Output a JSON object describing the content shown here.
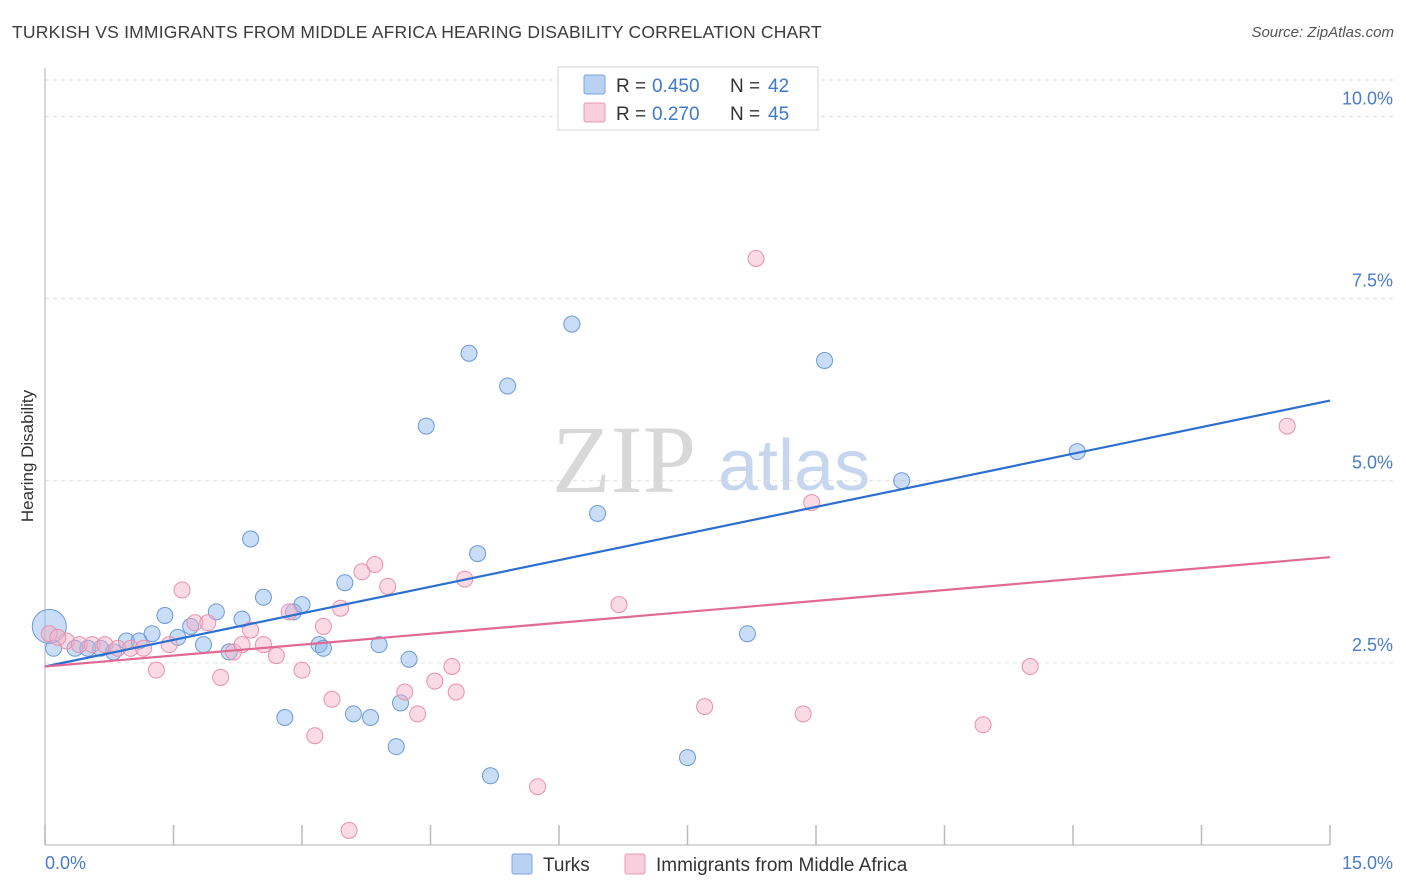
{
  "title": "TURKISH VS IMMIGRANTS FROM MIDDLE AFRICA HEARING DISABILITY CORRELATION CHART",
  "source": "Source: ZipAtlas.com",
  "watermark": {
    "zip": "ZIP",
    "atlas": "atlas"
  },
  "legend": {
    "r_label": "R = ",
    "n_label": "N = ",
    "rows": [
      {
        "r": "0.450",
        "n": "42"
      },
      {
        "r": "0.270",
        "n": "45"
      }
    ]
  },
  "chart_data": {
    "type": "scatter",
    "title": "TURKISH VS IMMIGRANTS FROM MIDDLE AFRICA HEARING DISABILITY CORRELATION CHART",
    "xlabel": "",
    "ylabel": "Hearing Disability",
    "xlim": [
      0,
      15
    ],
    "ylim": [
      0,
      10.5
    ],
    "x_tick_labels": [
      "0.0%",
      "15.0%"
    ],
    "y_ticks": [
      2.5,
      5.0,
      7.5,
      10.0
    ],
    "y_tick_labels": [
      "2.5%",
      "5.0%",
      "7.5%",
      "10.0%"
    ],
    "grid": "horizontal dashed",
    "legend_position": "top-center",
    "series": [
      {
        "name": "Turks",
        "color": "#8ab4ea",
        "stroke": "#6a9ad8",
        "line_color": "#2d6fcf",
        "r": 0.45,
        "n": 42,
        "trend": [
          [
            0,
            2.45
          ],
          [
            15,
            6.1
          ]
        ],
        "points": [
          [
            0.1,
            2.7
          ],
          [
            0.35,
            2.7
          ],
          [
            0.5,
            2.7
          ],
          [
            0.65,
            2.7
          ],
          [
            0.8,
            2.65
          ],
          [
            0.95,
            2.8
          ],
          [
            1.1,
            2.8
          ],
          [
            1.25,
            2.9
          ],
          [
            1.4,
            3.15
          ],
          [
            1.55,
            2.85
          ],
          [
            1.7,
            3.0
          ],
          [
            1.85,
            2.75
          ],
          [
            2.0,
            3.2
          ],
          [
            2.15,
            2.65
          ],
          [
            2.3,
            3.1
          ],
          [
            2.4,
            4.2
          ],
          [
            2.55,
            3.4
          ],
          [
            2.8,
            1.75
          ],
          [
            2.9,
            3.2
          ],
          [
            3.0,
            3.3
          ],
          [
            3.2,
            2.75
          ],
          [
            3.25,
            2.7
          ],
          [
            3.5,
            3.6
          ],
          [
            3.6,
            1.8
          ],
          [
            3.8,
            1.75
          ],
          [
            3.9,
            2.75
          ],
          [
            4.1,
            1.35
          ],
          [
            4.15,
            1.95
          ],
          [
            4.25,
            2.55
          ],
          [
            4.45,
            5.75
          ],
          [
            4.95,
            6.75
          ],
          [
            5.05,
            4.0
          ],
          [
            5.2,
            0.95
          ],
          [
            5.4,
            6.3
          ],
          [
            6.15,
            7.15
          ],
          [
            6.45,
            4.55
          ],
          [
            7.5,
            1.2
          ],
          [
            8.2,
            2.9
          ],
          [
            9.1,
            6.65
          ],
          [
            10.0,
            5.0
          ],
          [
            12.05,
            5.4
          ],
          [
            0.05,
            3.0
          ]
        ]
      },
      {
        "name": "Immigrants from Middle Africa",
        "color": "#f4b0c6",
        "stroke": "#e890ae",
        "line_color": "#e06a93",
        "r": 0.27,
        "n": 45,
        "trend": [
          [
            0,
            2.45
          ],
          [
            15,
            3.95
          ]
        ],
        "points": [
          [
            0.05,
            2.9
          ],
          [
            0.25,
            2.8
          ],
          [
            0.4,
            2.75
          ],
          [
            0.55,
            2.75
          ],
          [
            0.7,
            2.75
          ],
          [
            0.85,
            2.7
          ],
          [
            1.0,
            2.7
          ],
          [
            1.15,
            2.7
          ],
          [
            1.3,
            2.4
          ],
          [
            1.45,
            2.75
          ],
          [
            1.6,
            3.5
          ],
          [
            1.75,
            3.05
          ],
          [
            1.9,
            3.05
          ],
          [
            2.05,
            2.3
          ],
          [
            2.2,
            2.65
          ],
          [
            2.3,
            2.75
          ],
          [
            2.4,
            2.95
          ],
          [
            2.55,
            2.75
          ],
          [
            2.7,
            2.6
          ],
          [
            2.85,
            3.2
          ],
          [
            3.0,
            2.4
          ],
          [
            3.15,
            1.5
          ],
          [
            3.25,
            3.0
          ],
          [
            3.35,
            2.0
          ],
          [
            3.45,
            3.25
          ],
          [
            3.55,
            0.2
          ],
          [
            3.7,
            3.75
          ],
          [
            3.85,
            3.85
          ],
          [
            4.0,
            3.55
          ],
          [
            4.2,
            2.1
          ],
          [
            4.35,
            1.8
          ],
          [
            4.55,
            2.25
          ],
          [
            4.75,
            2.45
          ],
          [
            4.8,
            2.1
          ],
          [
            4.9,
            3.65
          ],
          [
            5.75,
            0.8
          ],
          [
            6.7,
            3.3
          ],
          [
            7.7,
            1.9
          ],
          [
            8.3,
            8.05
          ],
          [
            8.85,
            1.8
          ],
          [
            8.95,
            4.7
          ],
          [
            10.95,
            1.65
          ],
          [
            11.5,
            2.45
          ],
          [
            14.5,
            5.75
          ],
          [
            0.15,
            2.85
          ]
        ]
      }
    ]
  },
  "bottom_legend": [
    "Turks",
    "Immigrants from Middle Africa"
  ]
}
